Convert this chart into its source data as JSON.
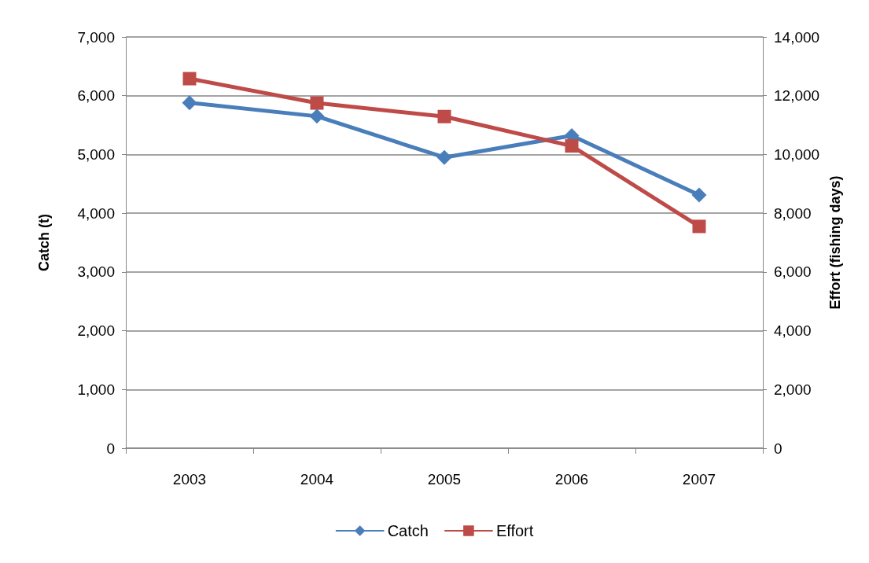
{
  "chart_data": {
    "type": "line",
    "categories": [
      "2003",
      "2004",
      "2005",
      "2006",
      "2007"
    ],
    "ylabel": "Catch (t)",
    "y2label": "Effort (fishing days)",
    "series": [
      {
        "name": "Catch",
        "color": "#4a7ebb",
        "marker": "diamond",
        "values": [
          5880,
          5650,
          4950,
          5320,
          4310
        ]
      },
      {
        "name": "Effort",
        "color": "#be4b48",
        "marker": "square",
        "axis": "y2",
        "values": [
          12580,
          11750,
          11290,
          10290,
          7550
        ]
      }
    ],
    "ylim": [
      0,
      7000
    ],
    "yticks": [
      0,
      {
        "value": 1000,
        "label": "1,000"
      },
      {
        "value": 2000,
        "label": "2,000"
      },
      {
        "value": 3000,
        "label": "3,000"
      },
      {
        "value": 4000,
        "label": "4,000"
      },
      {
        "value": 5000,
        "label": "5,000"
      },
      {
        "value": 6000,
        "label": "6,000"
      },
      {
        "value": 7000,
        "label": "7,000"
      }
    ],
    "y2lim": [
      0,
      14000
    ],
    "y2ticks": [
      0,
      {
        "value": 2000,
        "label": "2,000"
      },
      {
        "value": 4000,
        "label": "4,000"
      },
      {
        "value": 6000,
        "label": "6,000"
      },
      {
        "value": 8000,
        "label": "8,000"
      },
      {
        "value": 10000,
        "label": "10,000"
      },
      {
        "value": 12000,
        "label": "12,000"
      },
      {
        "value": 14000,
        "label": "14,000"
      }
    ],
    "grid": "y",
    "legend": "bottom",
    "line_style": "solid"
  }
}
